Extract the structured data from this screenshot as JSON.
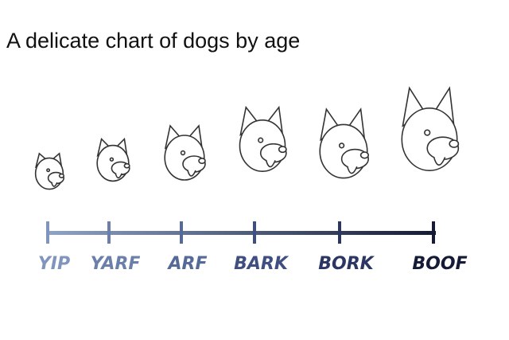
{
  "header": {
    "title": "A delicate chart of dogs by age"
  },
  "scale": {
    "labels": [
      "YIP",
      "YARF",
      "ARF",
      "BARK",
      "BORK",
      "BOOF"
    ]
  }
}
